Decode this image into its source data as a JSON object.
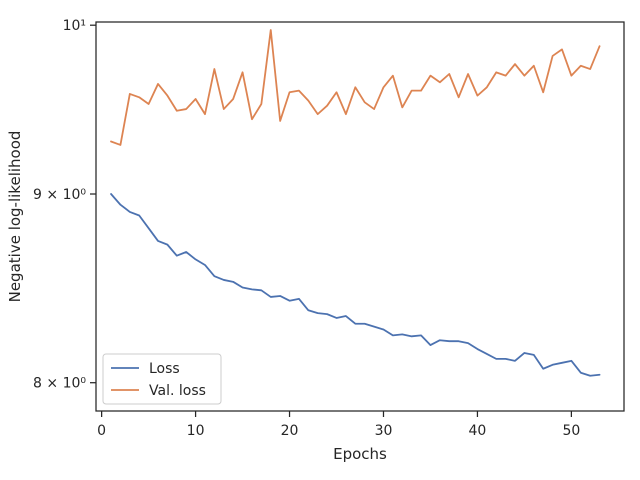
{
  "chart_data": {
    "type": "line",
    "xlabel": "Epochs",
    "ylabel": "Negative log-likelihood",
    "yscale": "log",
    "xlim": [
      -0.6,
      55.6
    ],
    "ylim": [
      7.86,
      10.02
    ],
    "xticks": [
      0,
      10,
      20,
      30,
      40,
      50
    ],
    "xtick_labels": [
      "0",
      "10",
      "20",
      "30",
      "40",
      "50"
    ],
    "yticks": [
      8,
      9,
      10
    ],
    "ytick_labels": [
      "8 × 10⁰",
      "9 × 10⁰",
      "10¹"
    ],
    "grid": false,
    "legend": "lower-left",
    "x": [
      1,
      2,
      3,
      4,
      5,
      6,
      7,
      8,
      9,
      10,
      11,
      12,
      13,
      14,
      15,
      16,
      17,
      18,
      19,
      20,
      21,
      22,
      23,
      24,
      25,
      26,
      27,
      28,
      29,
      30,
      31,
      32,
      33,
      34,
      35,
      36,
      37,
      38,
      39,
      40,
      41,
      42,
      43,
      44,
      45,
      46,
      47,
      48,
      49,
      50,
      51,
      52,
      53
    ],
    "series": [
      {
        "name": "Loss",
        "color": "#4c72b0",
        "values": [
          9.0,
          8.94,
          8.9,
          8.88,
          8.81,
          8.74,
          8.72,
          8.66,
          8.68,
          8.64,
          8.61,
          8.55,
          8.53,
          8.52,
          8.49,
          8.48,
          8.475,
          8.44,
          8.445,
          8.42,
          8.43,
          8.37,
          8.355,
          8.35,
          8.33,
          8.34,
          8.3,
          8.3,
          8.285,
          8.27,
          8.24,
          8.245,
          8.235,
          8.24,
          8.19,
          8.215,
          8.21,
          8.21,
          8.2,
          8.17,
          8.145,
          8.12,
          8.12,
          8.11,
          8.15,
          8.14,
          8.07,
          8.09,
          8.1,
          8.11,
          8.05,
          8.035,
          8.04
        ]
      },
      {
        "name": "Val. loss",
        "color": "#dd8452",
        "values": [
          9.3,
          9.28,
          9.58,
          9.56,
          9.52,
          9.64,
          9.57,
          9.48,
          9.49,
          9.55,
          9.46,
          9.73,
          9.49,
          9.55,
          9.71,
          9.43,
          9.52,
          9.97,
          9.42,
          9.59,
          9.6,
          9.54,
          9.46,
          9.51,
          9.59,
          9.46,
          9.62,
          9.53,
          9.49,
          9.62,
          9.69,
          9.5,
          9.6,
          9.6,
          9.69,
          9.65,
          9.7,
          9.56,
          9.7,
          9.57,
          9.62,
          9.71,
          9.69,
          9.76,
          9.69,
          9.75,
          9.59,
          9.81,
          9.85,
          9.69,
          9.75,
          9.73,
          9.87
        ]
      }
    ]
  }
}
